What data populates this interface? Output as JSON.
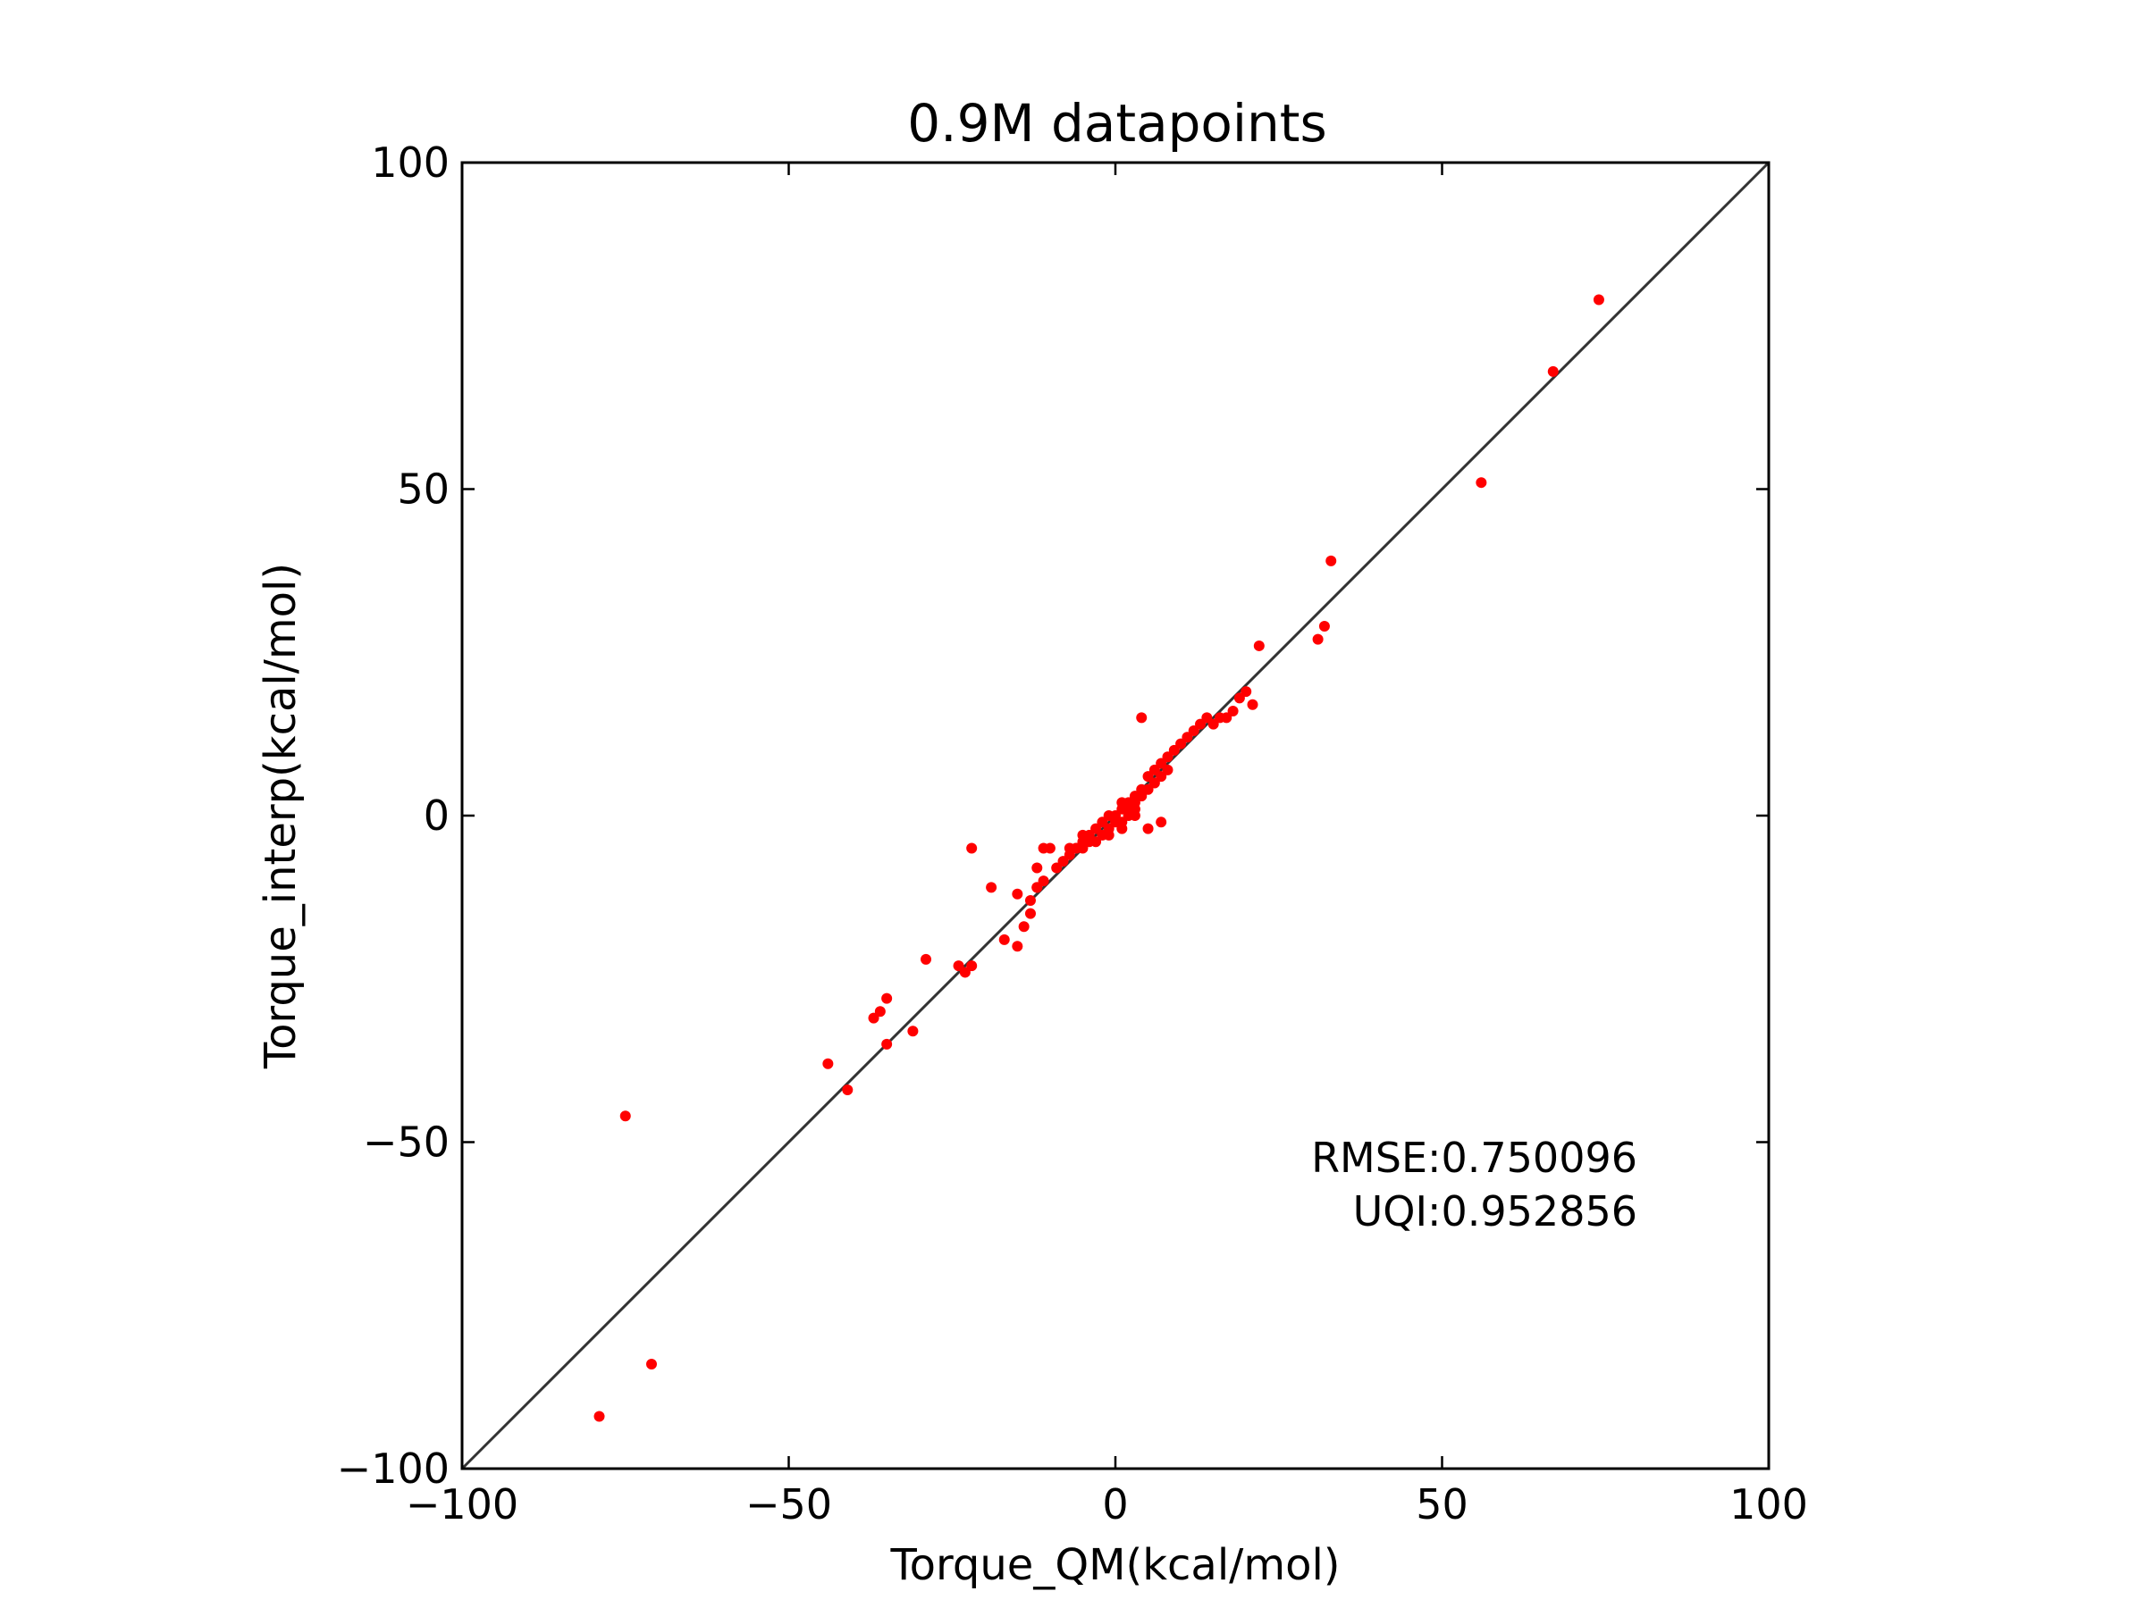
{
  "chart_data": {
    "type": "scatter",
    "title": "0.9M datapoints",
    "xlabel": "Torque_QM(kcal/mol)",
    "ylabel": "Torque_interp(kcal/mol)",
    "xlim": [
      -100,
      100
    ],
    "ylim": [
      -100,
      100
    ],
    "xticks": [
      -100,
      -50,
      0,
      50,
      100
    ],
    "yticks": [
      -100,
      -50,
      0,
      50,
      100
    ],
    "xtick_labels": [
      "−100",
      "−50",
      "0",
      "50",
      "100"
    ],
    "ytick_labels": [
      "−100",
      "−50",
      "0",
      "50",
      "100"
    ],
    "grid": false,
    "reference_line": {
      "from": [
        -100,
        -100
      ],
      "to": [
        100,
        100
      ],
      "color": "#333333"
    },
    "point_color": "#ff0000",
    "annotations": [
      "RMSE:0.750096",
      "UQI:0.952856"
    ],
    "series": [
      {
        "x": [
          -79,
          -71,
          -75,
          -44,
          -41,
          -36,
          -35,
          -37,
          -35,
          -31,
          -29,
          -24,
          -22,
          -23,
          -19,
          -17,
          -22,
          -15,
          -15,
          -13,
          -12,
          -14,
          -11,
          -12,
          -11,
          -10,
          -13,
          -12,
          -9,
          -8,
          -7,
          -6,
          -5,
          -4,
          -3,
          -2,
          -1,
          0,
          1,
          2,
          3,
          4,
          5,
          6,
          7,
          8,
          -2,
          -1,
          0,
          1,
          2,
          3,
          -3,
          -4,
          -5,
          -6,
          1,
          2,
          3,
          4,
          5,
          6,
          7,
          8,
          9,
          10,
          11,
          12,
          13,
          14,
          15,
          16,
          17,
          18,
          19,
          20,
          21,
          22,
          31,
          32,
          33,
          56,
          67,
          74,
          4,
          7,
          5,
          3,
          -7,
          -5,
          -1,
          1
        ],
        "y": [
          -92,
          -84,
          -46,
          -38,
          -42,
          -30,
          -28,
          -31,
          -35,
          -33,
          -22,
          -23,
          -23,
          -24,
          -11,
          -19,
          -5,
          -20,
          -12,
          -15,
          -11,
          -17,
          -10,
          -11,
          -5,
          -5,
          -13,
          -8,
          -8,
          -7,
          -6,
          -5,
          -4,
          -3,
          -2,
          -1,
          0,
          0,
          1,
          2,
          2,
          3,
          4,
          5,
          6,
          7,
          -3,
          -2,
          -1,
          -2,
          0,
          1,
          -4,
          -4,
          -5,
          -5,
          2,
          1,
          3,
          4,
          6,
          7,
          8,
          9,
          10,
          11,
          12,
          13,
          14,
          15,
          14,
          15,
          15,
          16,
          18,
          19,
          17,
          26,
          27,
          29,
          39,
          51,
          68,
          79,
          15,
          -1,
          -2,
          0,
          -5,
          -3,
          -3,
          -1
        ]
      }
    ]
  }
}
